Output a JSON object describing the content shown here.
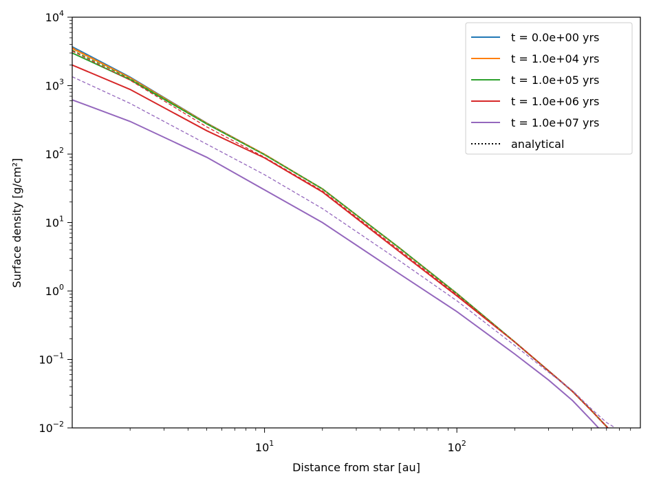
{
  "chart_data": {
    "type": "line",
    "title": "",
    "xlabel": "Distance from star [au]",
    "ylabel": "Surface density [g/cm²]",
    "xscale": "log",
    "yscale": "log",
    "xlim": [
      1.0,
      900
    ],
    "ylim": [
      0.01,
      10000
    ],
    "x_ticks": [
      {
        "value": 10,
        "base": "10",
        "exp": "1"
      },
      {
        "value": 100,
        "base": "10",
        "exp": "2"
      }
    ],
    "y_ticks": [
      {
        "value": 0.01,
        "base": "10",
        "exp": "−2"
      },
      {
        "value": 0.1,
        "base": "10",
        "exp": "−1"
      },
      {
        "value": 1,
        "base": "10",
        "exp": "0"
      },
      {
        "value": 10,
        "base": "10",
        "exp": "1"
      },
      {
        "value": 100,
        "base": "10",
        "exp": "2"
      },
      {
        "value": 1000,
        "base": "10",
        "exp": "3"
      },
      {
        "value": 10000,
        "base": "10",
        "exp": "4"
      }
    ],
    "legend_position": "top-right",
    "series": [
      {
        "name": "t = 0.0e+00 yrs",
        "color": "#1f77b4",
        "style": "solid",
        "x": [
          1.0,
          2,
          5,
          10,
          20,
          50,
          100,
          200,
          300,
          400,
          500,
          600,
          650
        ],
        "y": [
          3700,
          1330,
          284,
          99,
          31,
          4.3,
          0.92,
          0.18,
          0.068,
          0.034,
          0.018,
          0.0105,
          0.008
        ]
      },
      {
        "name": "t = 1.0e+04 yrs",
        "color": "#ff7f0e",
        "style": "solid",
        "x": [
          1.0,
          2,
          5,
          10,
          20,
          50,
          100,
          200,
          300,
          400,
          500,
          600,
          650
        ],
        "y": [
          3500,
          1300,
          282,
          99,
          31,
          4.3,
          0.92,
          0.18,
          0.068,
          0.034,
          0.018,
          0.0105,
          0.008
        ]
      },
      {
        "name": "t = 1.0e+05 yrs",
        "color": "#2ca02c",
        "style": "solid",
        "x": [
          1.0,
          2,
          5,
          10,
          20,
          50,
          100,
          200,
          300,
          400,
          500,
          600,
          650
        ],
        "y": [
          3000,
          1220,
          277,
          98,
          31,
          4.3,
          0.92,
          0.18,
          0.068,
          0.034,
          0.018,
          0.0105,
          0.008
        ]
      },
      {
        "name": "t = 1.0e+06 yrs",
        "color": "#d62728",
        "style": "solid",
        "x": [
          1.0,
          2,
          5,
          10,
          20,
          50,
          100,
          200,
          300,
          400,
          500,
          600,
          650
        ],
        "y": [
          2000,
          880,
          220,
          88,
          28,
          3.8,
          0.85,
          0.18,
          0.068,
          0.034,
          0.018,
          0.0105,
          0.008
        ]
      },
      {
        "name": "t = 1.0e+07 yrs",
        "color": "#9467bd",
        "style": "solid",
        "x": [
          1.0,
          2,
          5,
          10,
          20,
          50,
          100,
          200,
          300,
          400,
          500,
          560
        ],
        "y": [
          620,
          300,
          90,
          30,
          10,
          1.8,
          0.5,
          0.12,
          0.05,
          0.025,
          0.013,
          0.0092
        ]
      },
      {
        "name": "analytical",
        "color": "#000000",
        "style": "dotted",
        "legend_only": true,
        "x": [],
        "y": []
      },
      {
        "name": "",
        "color": "#1f77b4",
        "style": "dashed",
        "x": [
          1.0,
          2,
          5,
          10,
          20,
          50,
          100,
          200,
          300,
          400,
          500,
          600,
          650
        ],
        "y": [
          3600,
          1310,
          283,
          99,
          31,
          4.3,
          0.92,
          0.18,
          0.068,
          0.034,
          0.018,
          0.0105,
          0.008
        ]
      },
      {
        "name": "",
        "color": "#ff7f0e",
        "style": "dashed",
        "x": [
          1.0,
          2,
          5,
          10,
          20,
          50,
          100,
          200,
          300,
          400,
          500,
          600,
          650
        ],
        "y": [
          3600,
          1310,
          283,
          99,
          31,
          4.3,
          0.92,
          0.18,
          0.068,
          0.034,
          0.018,
          0.0105,
          0.008
        ]
      },
      {
        "name": "",
        "color": "#2ca02c",
        "style": "dashed",
        "x": [
          1.0,
          2,
          5,
          10,
          20,
          50,
          100,
          200,
          300,
          400,
          500,
          600,
          650
        ],
        "y": [
          3300,
          1260,
          280,
          98,
          31,
          4.3,
          0.92,
          0.18,
          0.068,
          0.034,
          0.018,
          0.0105,
          0.008
        ]
      },
      {
        "name": "",
        "color": "#d62728",
        "style": "dashed",
        "x": [
          1.0,
          2,
          5,
          10,
          20,
          50,
          100,
          200,
          300,
          400,
          500,
          600,
          650
        ],
        "y": [
          3200,
          1200,
          250,
          90,
          29,
          4.0,
          0.88,
          0.18,
          0.068,
          0.034,
          0.018,
          0.0105,
          0.008
        ]
      },
      {
        "name": "",
        "color": "#9467bd",
        "style": "dashed",
        "x": [
          1.0,
          2,
          5,
          10,
          20,
          50,
          100,
          200,
          300,
          400,
          500,
          600,
          700
        ],
        "y": [
          1350,
          550,
          140,
          50,
          16,
          2.8,
          0.72,
          0.16,
          0.065,
          0.035,
          0.019,
          0.012,
          0.0092
        ]
      }
    ]
  }
}
